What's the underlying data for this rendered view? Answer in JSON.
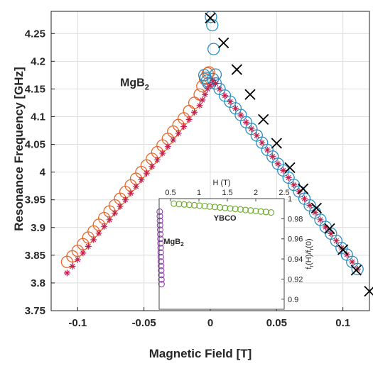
{
  "chart_data": [
    {
      "type": "scatter",
      "title": "",
      "xlabel": "Magnetic Field [T]",
      "ylabel": "Resonance Frequency [GHz]",
      "xlim": [
        -0.12,
        0.12
      ],
      "ylim": [
        3.75,
        4.29
      ],
      "xticks": [
        -0.1,
        -0.05,
        0,
        0.05,
        0.1
      ],
      "xtick_labels": [
        "-0.1",
        "-0.05",
        "0",
        "0.05",
        "0.1"
      ],
      "yticks": [
        3.75,
        3.8,
        3.85,
        3.9,
        3.95,
        4.0,
        4.05,
        4.1,
        4.15,
        4.2,
        4.25
      ],
      "ytick_labels": [
        "3.75",
        "3.8",
        "3.85",
        "3.9",
        "3.95",
        "4",
        "4.05",
        "4.1",
        "4.15",
        "4.2",
        "4.25"
      ],
      "grid": true,
      "annotations": [
        {
          "text": "MgB",
          "subscript": "2",
          "x": -0.068,
          "y": 4.155
        }
      ],
      "colors": {
        "up_sweep": "#e8662a",
        "down_sweep": "#2a8fc4",
        "fit": "#c21f4e",
        "cross": "#000000",
        "grid": "#dddddd"
      },
      "series": [
        {
          "marker": "circle",
          "x": [
            -0.108,
            -0.104,
            -0.1,
            -0.096,
            -0.092,
            -0.088,
            -0.084,
            -0.08,
            -0.076,
            -0.072,
            -0.068,
            -0.064,
            -0.06,
            -0.056,
            -0.052,
            -0.048,
            -0.044,
            -0.04,
            -0.036,
            -0.032,
            -0.028,
            -0.024,
            -0.02,
            -0.016,
            -0.012,
            -0.008,
            -0.006,
            -0.004,
            -0.002,
            -0.001
          ],
          "y": [
            3.838,
            3.848,
            3.858,
            3.87,
            3.882,
            3.893,
            3.905,
            3.917,
            3.929,
            3.94,
            3.952,
            3.964,
            3.976,
            3.988,
            4.0,
            4.012,
            4.024,
            4.036,
            4.048,
            4.06,
            4.073,
            4.085,
            4.097,
            4.11,
            4.125,
            4.14,
            4.155,
            4.168,
            4.178,
            4.18
          ]
        },
        {
          "marker": "circle",
          "x": [
            -0.0045,
            -0.0035,
            -0.0025,
            -0.0015,
            0.0005,
            0.0015,
            0.0025,
            0.004,
            0.002,
            0.004,
            0.007,
            0.011,
            0.015,
            0.019,
            0.023,
            0.027,
            0.031,
            0.035,
            0.039,
            0.043,
            0.047,
            0.051,
            0.055,
            0.059,
            0.063,
            0.067,
            0.071,
            0.075,
            0.079,
            0.083,
            0.087,
            0.091,
            0.095,
            0.099,
            0.103,
            0.107,
            0.111
          ],
          "y": [
            4.175,
            4.17,
            4.165,
            4.16,
            4.28,
            4.265,
            4.222,
            4.176,
            4.168,
            4.16,
            4.15,
            4.138,
            4.127,
            4.115,
            4.103,
            4.09,
            4.078,
            4.066,
            4.053,
            4.04,
            4.028,
            4.015,
            4.003,
            3.99,
            3.977,
            3.965,
            3.952,
            3.94,
            3.927,
            3.914,
            3.901,
            3.889,
            3.876,
            3.863,
            3.851,
            3.838,
            3.825
          ]
        },
        {
          "marker": "asterisk",
          "x": [
            -0.108,
            -0.104,
            -0.1,
            -0.096,
            -0.092,
            -0.088,
            -0.084,
            -0.08,
            -0.076,
            -0.072,
            -0.068,
            -0.064,
            -0.06,
            -0.056,
            -0.052,
            -0.048,
            -0.044,
            -0.04,
            -0.036,
            -0.032,
            -0.028,
            -0.024,
            -0.02,
            -0.016,
            -0.012,
            -0.008,
            -0.006,
            -0.004,
            -0.002,
            0.0,
            0.002,
            0.004,
            0.007,
            0.011,
            0.015,
            0.019,
            0.023,
            0.027,
            0.031,
            0.035,
            0.039,
            0.043,
            0.047,
            0.051,
            0.055,
            0.059,
            0.063,
            0.067,
            0.071,
            0.075,
            0.079,
            0.083,
            0.087,
            0.091,
            0.095,
            0.099,
            0.103,
            0.107,
            0.111
          ],
          "y": [
            3.818,
            3.83,
            3.842,
            3.854,
            3.866,
            3.878,
            3.89,
            3.902,
            3.914,
            3.926,
            3.938,
            3.95,
            3.962,
            3.974,
            3.986,
            3.998,
            4.01,
            4.022,
            4.034,
            4.046,
            4.058,
            4.07,
            4.082,
            4.095,
            4.108,
            4.12,
            4.13,
            4.14,
            4.15,
            4.157,
            4.165,
            4.16,
            4.15,
            4.138,
            4.127,
            4.115,
            4.103,
            4.09,
            4.078,
            4.066,
            4.053,
            4.04,
            4.028,
            4.015,
            4.003,
            3.99,
            3.977,
            3.965,
            3.952,
            3.94,
            3.927,
            3.914,
            3.901,
            3.889,
            3.876,
            3.863,
            3.851,
            3.838,
            3.825
          ]
        },
        {
          "marker": "cross",
          "x": [
            0.0,
            0.01,
            0.02,
            0.03,
            0.04,
            0.05,
            0.06,
            0.07,
            0.08,
            0.09,
            0.1,
            0.11,
            0.12
          ],
          "y": [
            4.278,
            4.233,
            4.185,
            4.14,
            4.095,
            4.052,
            4.008,
            3.97,
            3.935,
            3.898,
            3.86,
            3.823,
            3.785
          ]
        }
      ]
    },
    {
      "type": "scatter",
      "title": "",
      "xlabel": "H (T)",
      "ylabel": "f",
      "ylabel_parts": [
        "f",
        "r",
        "(H)/f",
        "r",
        "(0)"
      ],
      "xlim": [
        0.3,
        2.5
      ],
      "ylim": [
        0.89,
        1.0
      ],
      "xticks": [
        0.5,
        1,
        1.5,
        2,
        2.5
      ],
      "xtick_labels": [
        "0.5",
        "1",
        "1.5",
        "2",
        "2.5"
      ],
      "yticks": [
        0.9,
        0.92,
        0.94,
        0.96,
        0.98,
        1.0
      ],
      "ytick_labels": [
        "0.9",
        "0.92",
        "0.94",
        "0.96",
        "0.98",
        "1"
      ],
      "x_axis_position": "top",
      "y_axis_position": "right",
      "grid": false,
      "colors": {
        "ybco": "#6aaa2a",
        "mgb2": "#8e3fa8"
      },
      "series": [
        {
          "name": "YBCO",
          "marker": "circle",
          "x": [
            0.56,
            0.65,
            0.74,
            0.83,
            0.92,
            1.01,
            1.1,
            1.19,
            1.28,
            1.37,
            1.46,
            1.55,
            1.64,
            1.73,
            1.82,
            1.91,
            2.0,
            2.09,
            2.18,
            2.27
          ],
          "y": [
            0.995,
            0.9946,
            0.9942,
            0.9938,
            0.9934,
            0.993,
            0.9926,
            0.9921,
            0.9917,
            0.9912,
            0.9907,
            0.9902,
            0.9897,
            0.9892,
            0.9887,
            0.9882,
            0.9877,
            0.9872,
            0.9867,
            0.9862
          ]
        },
        {
          "name": "MgB",
          "name_subscript": "2",
          "marker": "circle",
          "x": [
            0.31,
            0.312,
            0.314,
            0.316,
            0.318,
            0.32,
            0.322,
            0.324,
            0.326,
            0.328,
            0.33,
            0.332,
            0.334,
            0.336,
            0.338,
            0.34,
            0.342
          ],
          "y": [
            0.987,
            0.9825,
            0.978,
            0.9735,
            0.969,
            0.9645,
            0.96,
            0.9555,
            0.951,
            0.9465,
            0.942,
            0.9375,
            0.933,
            0.9285,
            0.924,
            0.9195,
            0.915
          ]
        }
      ]
    }
  ]
}
